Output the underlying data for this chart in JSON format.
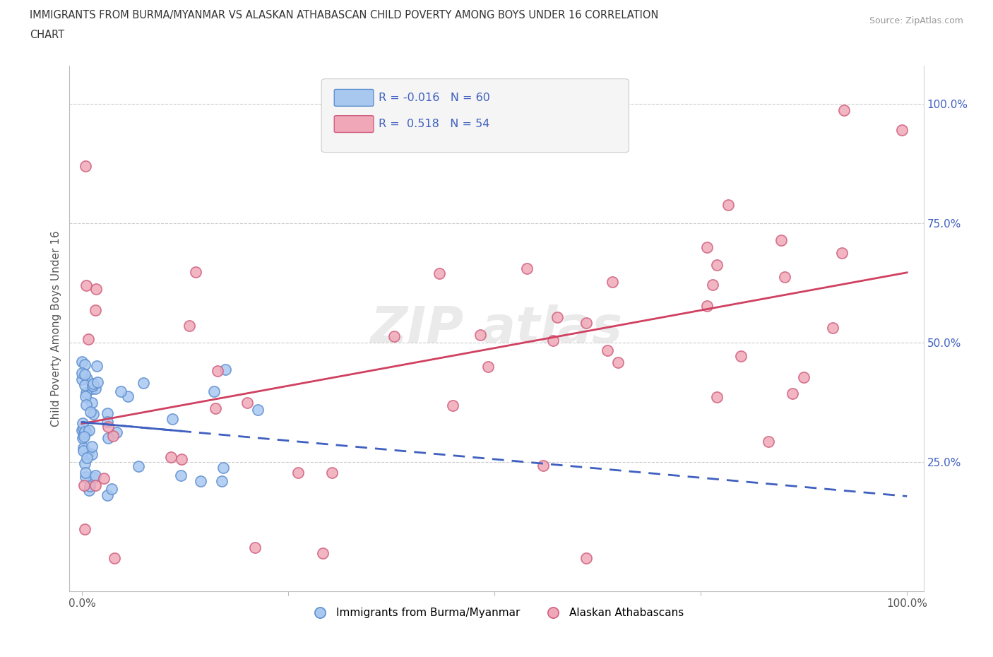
{
  "title_line1": "IMMIGRANTS FROM BURMA/MYANMAR VS ALASKAN ATHABASCAN CHILD POVERTY AMONG BOYS UNDER 16 CORRELATION",
  "title_line2": "CHART",
  "source": "Source: ZipAtlas.com",
  "ylabel": "Child Poverty Among Boys Under 16",
  "r_blue": -0.016,
  "n_blue": 60,
  "r_pink": 0.518,
  "n_pink": 54,
  "legend_label_blue": "Immigrants from Burma/Myanmar",
  "legend_label_pink": "Alaskan Athabascans",
  "blue_dot_color": "#A8C8F0",
  "blue_dot_edge": "#6090D0",
  "pink_dot_color": "#F0A8B8",
  "pink_dot_edge": "#D06080",
  "blue_line_color": "#4060C0",
  "pink_line_color": "#D04060",
  "axis_label_color": "#4060C0",
  "title_color": "#333333",
  "source_color": "#999999",
  "watermark_color": "#DDDDDD",
  "grid_color": "#CCCCCC",
  "figsize": [
    14.06,
    9.3
  ],
  "dpi": 100
}
